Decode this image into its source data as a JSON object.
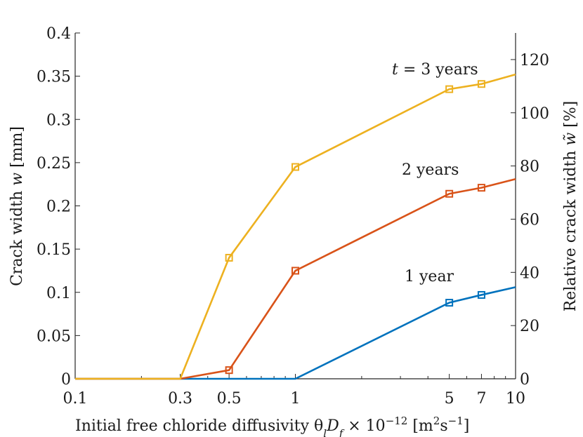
{
  "chart_data": {
    "type": "line",
    "xscale": "log",
    "xlim": [
      0.1,
      10
    ],
    "ylim": [
      0,
      0.4
    ],
    "y2lim": [
      0,
      130
    ],
    "xticks": [
      {
        "value": 0.1,
        "label": "0.1"
      },
      {
        "value": 0.3,
        "label": "0.3"
      },
      {
        "value": 0.5,
        "label": "0.5"
      },
      {
        "value": 1,
        "label": "1"
      },
      {
        "value": 5,
        "label": "5"
      },
      {
        "value": 7,
        "label": "7"
      },
      {
        "value": 10,
        "label": "10"
      }
    ],
    "yticks": [
      {
        "value": 0,
        "label": "0"
      },
      {
        "value": 0.05,
        "label": "0.05"
      },
      {
        "value": 0.1,
        "label": "0.1"
      },
      {
        "value": 0.15,
        "label": "0.15"
      },
      {
        "value": 0.2,
        "label": "0.2"
      },
      {
        "value": 0.25,
        "label": "0.25"
      },
      {
        "value": 0.3,
        "label": "0.3"
      },
      {
        "value": 0.35,
        "label": "0.35"
      },
      {
        "value": 0.4,
        "label": "0.4"
      }
    ],
    "y2ticks": [
      {
        "value": 0,
        "label": "0"
      },
      {
        "value": 20,
        "label": "20"
      },
      {
        "value": 40,
        "label": "40"
      },
      {
        "value": 60,
        "label": "60"
      },
      {
        "value": 80,
        "label": "80"
      },
      {
        "value": 100,
        "label": "100"
      },
      {
        "value": 120,
        "label": "120"
      }
    ],
    "xlabel": "Initial free chloride diffusivity θ",
    "xlabel_sub_l": "l",
    "xlabel_D": "D",
    "xlabel_sub_f": "f",
    "xlabel_times": " × 10",
    "xlabel_exp": "−12",
    "xlabel_units_open": " [m",
    "xlabel_units_sq": "2",
    "xlabel_units_s": "s",
    "xlabel_units_exp": "−1",
    "xlabel_units_close": "]",
    "ylabel": "Crack width ",
    "ylabel_var": "w",
    "ylabel_units": " [mm]",
    "y2label": "Relative crack width ",
    "y2label_var": "w̃",
    "y2label_units": " [%]",
    "series": [
      {
        "name": "1 year",
        "label_prefix": "",
        "label_text": "1 year",
        "color": "#0072BD",
        "x": [
          0.1,
          0.3,
          0.5,
          1,
          5,
          7,
          10
        ],
        "y": [
          0,
          0,
          0,
          0,
          0.088,
          0.097,
          0.106
        ],
        "markers": [
          5,
          7
        ]
      },
      {
        "name": "2 years",
        "label_prefix": "",
        "label_text": "2 years",
        "color": "#D95319",
        "x": [
          0.1,
          0.3,
          0.5,
          1,
          5,
          7,
          10
        ],
        "y": [
          0,
          0,
          0.01,
          0.125,
          0.214,
          0.221,
          0.231
        ],
        "markers": [
          0.5,
          1,
          5,
          7
        ]
      },
      {
        "name": "3 years",
        "label_prefix": "t",
        "label_text": " = 3 years",
        "color": "#EDB120",
        "x": [
          0.1,
          0.3,
          0.5,
          1,
          5,
          7,
          10
        ],
        "y": [
          0,
          0,
          0.14,
          0.245,
          0.335,
          0.341,
          0.352
        ],
        "markers": [
          0.5,
          1,
          5,
          7
        ]
      }
    ]
  }
}
